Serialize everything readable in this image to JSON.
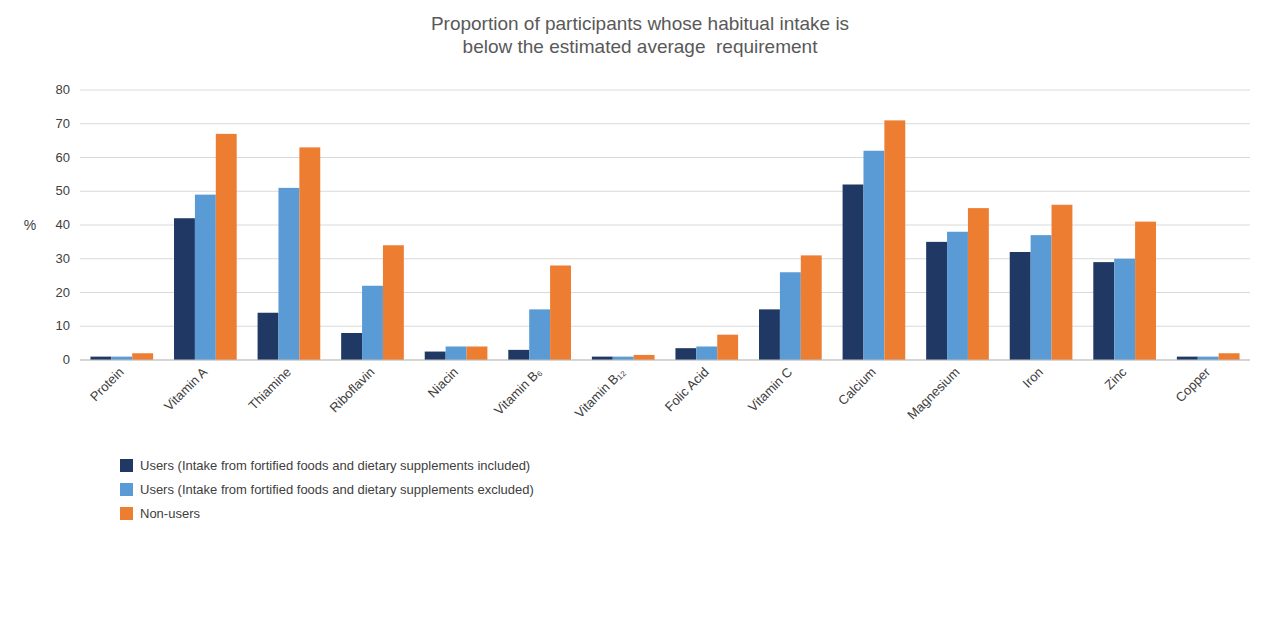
{
  "chart_data": {
    "type": "bar",
    "title": "Proportion of participants whose habitual intake is\nbelow the estimated average  requirement",
    "y_label": "%",
    "categories": [
      "Protein",
      "Vitamin A",
      "Thiamine",
      "Riboflavin",
      "Niacin",
      "Vitamin B₆",
      "Vitamin B₁₂",
      "Folic Acid",
      "Vitamin C",
      "Calcium",
      "Magnesium",
      "Iron",
      "Zinc",
      "Copper"
    ],
    "series": [
      {
        "name": "Users (Intake from fortified foods and dietary supplements included)",
        "color": "#1f3864",
        "values": [
          1,
          42,
          14,
          8,
          2.5,
          3,
          1,
          3.5,
          15,
          52,
          35,
          32,
          29,
          1
        ]
      },
      {
        "name": "Users (Intake from fortified foods and dietary supplements excluded)",
        "color": "#5b9bd5",
        "values": [
          1,
          49,
          51,
          22,
          4,
          15,
          1,
          4,
          26,
          62,
          38,
          37,
          30,
          1
        ]
      },
      {
        "name": "Non-users",
        "color": "#ed7d31",
        "values": [
          2,
          67,
          63,
          34,
          4,
          28,
          1.5,
          7.5,
          31,
          71,
          45,
          46,
          41,
          2
        ]
      }
    ],
    "ylim": [
      0,
      80
    ],
    "yticks": [
      0,
      10,
      20,
      30,
      40,
      50,
      60,
      70,
      80
    ],
    "grid": true,
    "legend": "bottom"
  }
}
